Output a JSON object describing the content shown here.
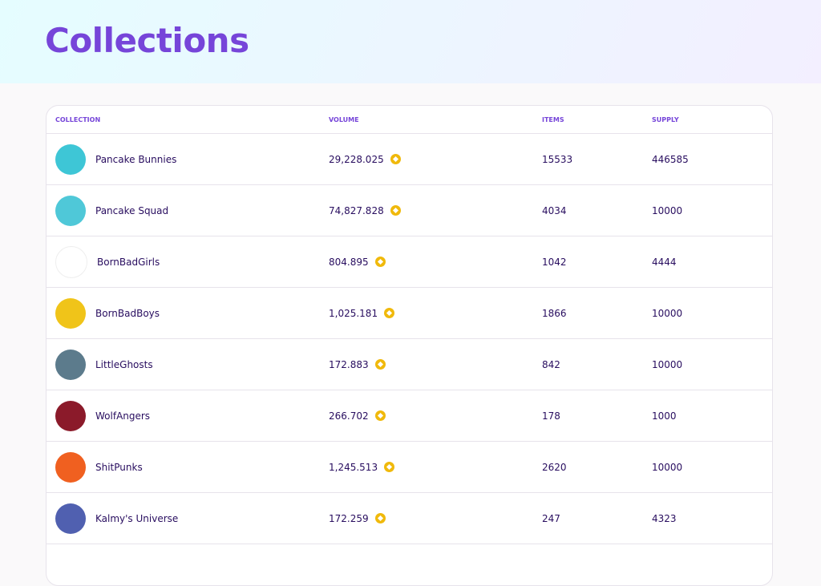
{
  "header": {
    "title": "Collections"
  },
  "table": {
    "columns": [
      "COLLECTION",
      "VOLUME",
      "ITEMS",
      "SUPPLY"
    ],
    "rows": [
      [
        "Pancake Bunnies",
        "29,228.025",
        "15533",
        "446585"
      ],
      [
        "Pancake Squad",
        "74,827.828",
        "4034",
        "10000"
      ],
      [
        "BornBadGirls",
        "804.895",
        "1042",
        "4444"
      ],
      [
        "BornBadBoys",
        "1,025.181",
        "1866",
        "10000"
      ],
      [
        "LittleGhosts",
        "172.883",
        "842",
        "10000"
      ],
      [
        "WolfAngers",
        "266.702",
        "178",
        "1000"
      ],
      [
        "ShitPunks",
        "1,245.513",
        "2620",
        "10000"
      ],
      [
        "Kalmy's Universe",
        "172.259",
        "247",
        "4323"
      ]
    ]
  }
}
